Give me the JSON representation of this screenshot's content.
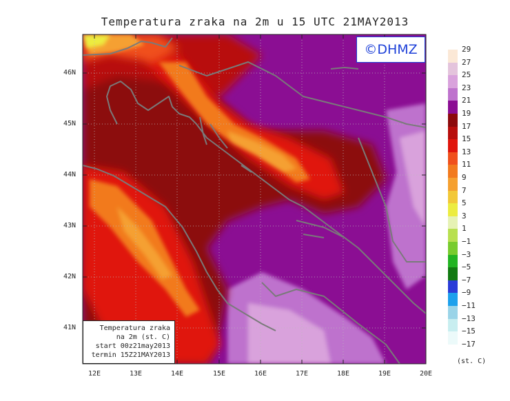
{
  "title": "Temperatura zraka na 2m u 15 UTC 21MAY2013",
  "logo": "©DHMZ",
  "axes": {
    "lat_labels": [
      "46N",
      "45N",
      "44N",
      "43N",
      "42N",
      "41N"
    ],
    "lon_labels": [
      "12E",
      "13E",
      "14E",
      "15E",
      "16E",
      "17E",
      "18E",
      "19E",
      "20E"
    ]
  },
  "info_box": {
    "line1": "Temperatura zraka",
    "line2": "na 2m (st. C)",
    "line3": "start 00z21may2013",
    "line4": "termin 15Z21MAY2013"
  },
  "legend": {
    "labels": [
      "29",
      "27",
      "25",
      "23",
      "21",
      "19",
      "17",
      "15",
      "13",
      "11",
      "9",
      "7",
      "5",
      "3",
      "1",
      "−1",
      "−3",
      "−5",
      "−7",
      "−9",
      "−11",
      "−13",
      "−15",
      "−17"
    ],
    "colors": [
      "#fbe8d6",
      "#e4c4dc",
      "#d9a2dc",
      "#be72cd",
      "#8b0e93",
      "#8c0a0c",
      "#b80e0c",
      "#e0150c",
      "#f0501c",
      "#f27a1e",
      "#f5a030",
      "#f2c838",
      "#ecec40",
      "#e6f2b4",
      "#b8e050",
      "#78cc2e",
      "#22b422",
      "#127a12",
      "#2a3cd8",
      "#1ca0ec",
      "#9ad4e8",
      "#c8eef0",
      "#ecfafa"
    ],
    "unit": "(st. C)"
  },
  "palette": {
    "frame": "#222222",
    "coast": "#7a7a7a",
    "grid": "#bbbbbb"
  }
}
